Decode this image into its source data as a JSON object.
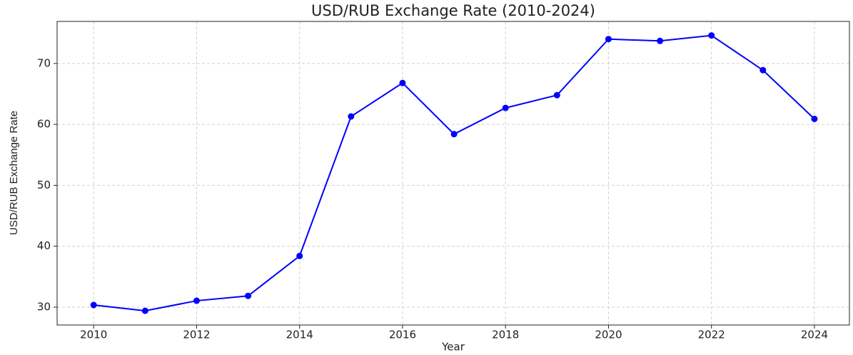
{
  "chart_data": {
    "type": "line",
    "title": "USD/RUB Exchange Rate (2010-2024)",
    "x_label": "Year",
    "y_label": "USD/RUB Exchange Rate",
    "x": [
      2010,
      2011,
      2012,
      2013,
      2014,
      2015,
      2016,
      2017,
      2018,
      2019,
      2020,
      2021,
      2022,
      2023,
      2024
    ],
    "series": [
      {
        "name": "USD/RUB",
        "color": "#0000ff",
        "values": [
          30.35,
          29.4,
          31.05,
          31.85,
          38.4,
          61.3,
          66.8,
          58.4,
          62.7,
          64.8,
          74.0,
          73.7,
          74.6,
          68.9,
          60.9
        ]
      }
    ],
    "xlim": [
      2009.29,
      2024.68
    ],
    "xticks": [
      2010,
      2012,
      2014,
      2016,
      2018,
      2020,
      2022,
      2024
    ],
    "ylim": [
      27.07,
      76.9
    ],
    "yticks": [
      30,
      40,
      50,
      60,
      70
    ],
    "grid": true
  }
}
